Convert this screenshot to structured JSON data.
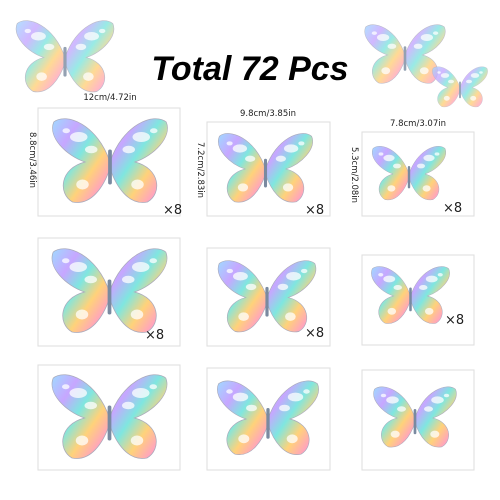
{
  "title": "Total 72 Pcs",
  "sizes": [
    {
      "width": "12cm/4.72in",
      "height": "8.8cm/3.46in"
    },
    {
      "width": "9.8cm/3.85in",
      "height": "7.2cm/2.83in"
    },
    {
      "width": "7.8cm/3.07in",
      "height": "5.3cm/2.08in"
    }
  ],
  "quantities": [
    [
      "×8",
      "×8",
      "×8"
    ],
    [
      "×8",
      "×8",
      "×8"
    ]
  ]
}
